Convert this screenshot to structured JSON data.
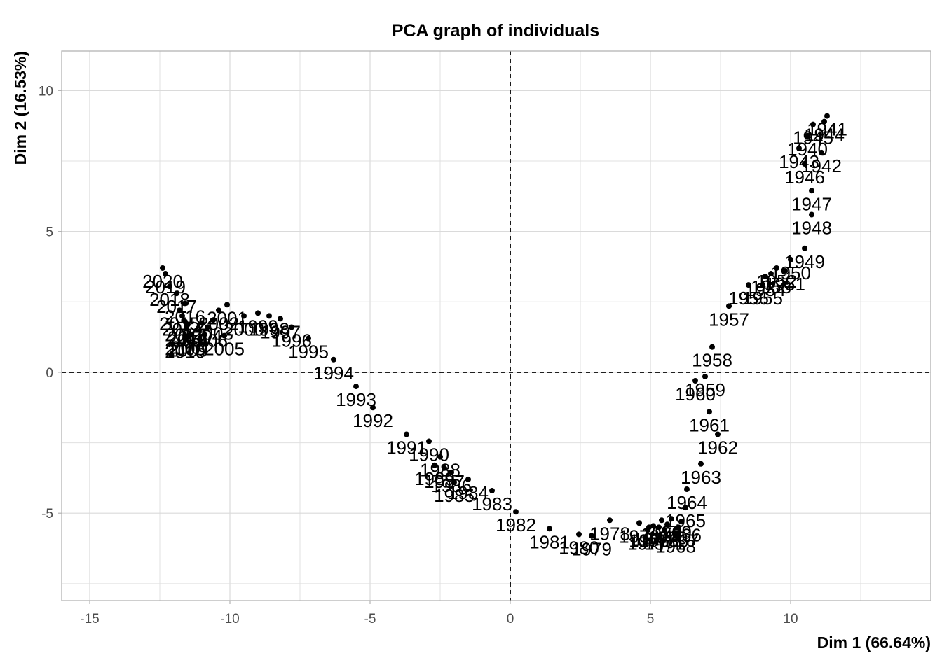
{
  "chart_data": {
    "type": "scatter",
    "title": "PCA graph of individuals",
    "xlabel": "Dim 1 (66.64%)",
    "ylabel": "Dim 2 (16.53%)",
    "xlim": [
      -16,
      15
    ],
    "ylim": [
      -8.1,
      11.4
    ],
    "xticks": [
      -15,
      -10,
      -5,
      0,
      5,
      10
    ],
    "yticks": [
      -5,
      0,
      5,
      10
    ],
    "x_tick_labels": [
      "-15",
      "-10",
      "-5",
      "0",
      "5",
      "10"
    ],
    "y_tick_labels": [
      "-5",
      "0",
      "5",
      "10"
    ],
    "reference_lines": {
      "x": 0,
      "y": 0,
      "style": "dashed"
    },
    "grid": true,
    "point_color": "#000000",
    "points": [
      {
        "label": "1941",
        "x": 11.3,
        "y": 9.1
      },
      {
        "label": "1944",
        "x": 11.2,
        "y": 8.9
      },
      {
        "label": "1945",
        "x": 10.8,
        "y": 8.8
      },
      {
        "label": "1940",
        "x": 10.6,
        "y": 8.4
      },
      {
        "label": "1942",
        "x": 11.1,
        "y": 7.8
      },
      {
        "label": "1943",
        "x": 10.3,
        "y": 7.95
      },
      {
        "label": "1946",
        "x": 10.5,
        "y": 7.4
      },
      {
        "label": "1947",
        "x": 10.75,
        "y": 6.45
      },
      {
        "label": "1948",
        "x": 10.75,
        "y": 5.6
      },
      {
        "label": "1949",
        "x": 10.5,
        "y": 4.4
      },
      {
        "label": "1950",
        "x": 10.0,
        "y": 4.0
      },
      {
        "label": "1951",
        "x": 9.8,
        "y": 3.6
      },
      {
        "label": "1952",
        "x": 9.5,
        "y": 3.7
      },
      {
        "label": "1953",
        "x": 9.3,
        "y": 3.5
      },
      {
        "label": "1954",
        "x": 9.1,
        "y": 3.4
      },
      {
        "label": "1955",
        "x": 9.0,
        "y": 3.1
      },
      {
        "label": "1956",
        "x": 8.5,
        "y": 3.1
      },
      {
        "label": "1957",
        "x": 7.8,
        "y": 2.35
      },
      {
        "label": "1958",
        "x": 7.2,
        "y": 0.9
      },
      {
        "label": "1959",
        "x": 6.95,
        "y": -0.15
      },
      {
        "label": "1960",
        "x": 6.6,
        "y": -0.3
      },
      {
        "label": "1961",
        "x": 7.1,
        "y": -1.4
      },
      {
        "label": "1962",
        "x": 7.4,
        "y": -2.2
      },
      {
        "label": "1963",
        "x": 6.8,
        "y": -3.25
      },
      {
        "label": "1964",
        "x": 6.3,
        "y": -4.15
      },
      {
        "label": "1965",
        "x": 6.25,
        "y": -4.8
      },
      {
        "label": "1966",
        "x": 6.1,
        "y": -5.3
      },
      {
        "label": "1967",
        "x": 6.0,
        "y": -5.5
      },
      {
        "label": "1968",
        "x": 5.9,
        "y": -5.7
      },
      {
        "label": "1969",
        "x": 5.75,
        "y": -5.2
      },
      {
        "label": "1970",
        "x": 5.6,
        "y": -5.4
      },
      {
        "label": "1971",
        "x": 5.5,
        "y": -5.6
      },
      {
        "label": "1972",
        "x": 5.4,
        "y": -5.25
      },
      {
        "label": "1973",
        "x": 5.3,
        "y": -5.5
      },
      {
        "label": "1974",
        "x": 5.1,
        "y": -5.45
      },
      {
        "label": "1975",
        "x": 4.95,
        "y": -5.5
      },
      {
        "label": "1976",
        "x": 4.6,
        "y": -5.35
      },
      {
        "label": "1977",
        "x": 4.9,
        "y": -5.6
      },
      {
        "label": "1978",
        "x": 3.55,
        "y": -5.25
      },
      {
        "label": "1979",
        "x": 2.9,
        "y": -5.8
      },
      {
        "label": "1980",
        "x": 2.45,
        "y": -5.75
      },
      {
        "label": "1981",
        "x": 1.4,
        "y": -5.55
      },
      {
        "label": "1982",
        "x": 0.2,
        "y": -4.95
      },
      {
        "label": "1983",
        "x": -0.65,
        "y": -4.2
      },
      {
        "label": "1984",
        "x": -1.5,
        "y": -3.8
      },
      {
        "label": "1985",
        "x": -2.0,
        "y": -3.9
      },
      {
        "label": "1986",
        "x": -2.1,
        "y": -3.55
      },
      {
        "label": "1987",
        "x": -2.35,
        "y": -3.4
      },
      {
        "label": "1988",
        "x": -2.5,
        "y": -3.0
      },
      {
        "label": "1989",
        "x": -2.7,
        "y": -3.3
      },
      {
        "label": "1990",
        "x": -2.9,
        "y": -2.45
      },
      {
        "label": "1991",
        "x": -3.7,
        "y": -2.2
      },
      {
        "label": "1992",
        "x": -4.9,
        "y": -1.25
      },
      {
        "label": "1993",
        "x": -5.5,
        "y": -0.5
      },
      {
        "label": "1994",
        "x": -6.3,
        "y": 0.45
      },
      {
        "label": "1995",
        "x": -7.2,
        "y": 1.2
      },
      {
        "label": "1996",
        "x": -7.8,
        "y": 1.6
      },
      {
        "label": "1997",
        "x": -8.2,
        "y": 1.9
      },
      {
        "label": "1998",
        "x": -8.6,
        "y": 2.0
      },
      {
        "label": "1999",
        "x": -9.0,
        "y": 2.1
      },
      {
        "label": "2000",
        "x": -9.5,
        "y": 2.0
      },
      {
        "label": "2001",
        "x": -10.1,
        "y": 2.4
      },
      {
        "label": "2002",
        "x": -10.4,
        "y": 2.2
      },
      {
        "label": "2003",
        "x": -10.6,
        "y": 1.85
      },
      {
        "label": "2004",
        "x": -11.0,
        "y": 1.75
      },
      {
        "label": "2005",
        "x": -10.2,
        "y": 1.3
      },
      {
        "label": "2006",
        "x": -10.8,
        "y": 1.6
      },
      {
        "label": "2007",
        "x": -11.4,
        "y": 1.35
      },
      {
        "label": "2008",
        "x": -11.6,
        "y": 1.3
      },
      {
        "label": "2009",
        "x": -11.5,
        "y": 1.25
      },
      {
        "label": "2010",
        "x": -11.6,
        "y": 1.2
      },
      {
        "label": "2011",
        "x": -11.55,
        "y": 1.6
      },
      {
        "label": "2012",
        "x": -11.5,
        "y": 1.7
      },
      {
        "label": "2013",
        "x": -11.6,
        "y": 1.8
      },
      {
        "label": "2014",
        "x": -11.7,
        "y": 2.0
      },
      {
        "label": "2015",
        "x": -11.8,
        "y": 2.2
      },
      {
        "label": "2016",
        "x": -11.6,
        "y": 2.45
      },
      {
        "label": "2017",
        "x": -11.9,
        "y": 2.8
      },
      {
        "label": "2018",
        "x": -12.15,
        "y": 3.05
      },
      {
        "label": "2019",
        "x": -12.3,
        "y": 3.5
      },
      {
        "label": "2020",
        "x": -12.4,
        "y": 3.7
      }
    ]
  }
}
